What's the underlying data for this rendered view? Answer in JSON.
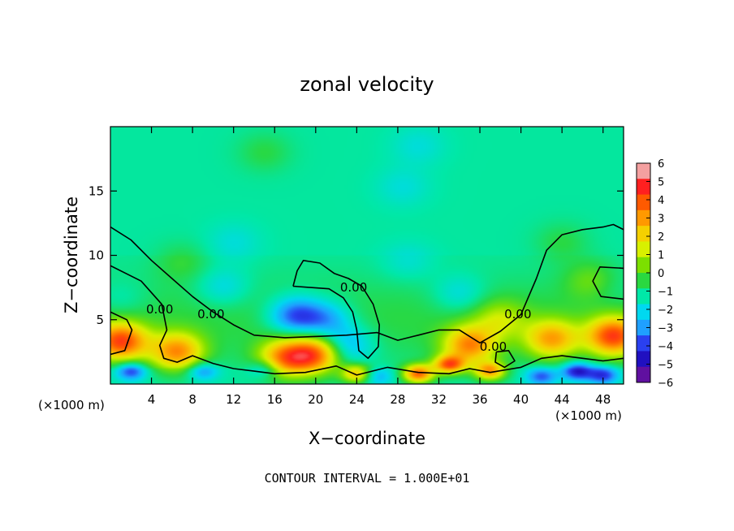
{
  "chart_data": {
    "type": "heatmap",
    "title": "zonal velocity",
    "xlabel": "X−coordinate",
    "ylabel": "Z−coordinate",
    "x_units": "(×1000 m)",
    "xlim": [
      0,
      50
    ],
    "ylim": [
      0,
      20
    ],
    "xticks": [
      4,
      8,
      12,
      16,
      20,
      24,
      28,
      32,
      36,
      40,
      44,
      48
    ],
    "yticks": [
      5,
      10,
      15
    ],
    "colorbar": {
      "min": -6,
      "max": 6,
      "ticks": [
        "6",
        "5",
        "4",
        "3",
        "2",
        "1",
        "0",
        "−1",
        "−2",
        "−3",
        "−4",
        "−5",
        "−6"
      ],
      "colors": [
        "#f4a0a0",
        "#ff2020",
        "#ff5a00",
        "#ff9900",
        "#f5d000",
        "#d8f000",
        "#7ce000",
        "#2ad840",
        "#00e8a8",
        "#00d8f0",
        "#1fa0ff",
        "#2a40f0",
        "#2010c0",
        "#6010a0"
      ]
    },
    "background_value": -1.3,
    "features": [
      {
        "x": 18,
        "z": 5.3,
        "value": -4.5
      },
      {
        "x": 21,
        "z": 5,
        "value": -3.5
      },
      {
        "x": 23,
        "z": 3,
        "value": -3.5
      },
      {
        "x": 12,
        "z": 11,
        "value": -2
      },
      {
        "x": 11,
        "z": 7.5,
        "value": -2.5
      },
      {
        "x": 1,
        "z": 6.5,
        "value": -2
      },
      {
        "x": 34,
        "z": 7,
        "value": -2.5
      },
      {
        "x": 29,
        "z": 9.5,
        "value": -2
      },
      {
        "x": 28.5,
        "z": 15.3,
        "value": -2
      },
      {
        "x": 30,
        "z": 18.5,
        "value": -2
      },
      {
        "x": 15,
        "z": 18,
        "value": -0.5
      },
      {
        "x": 7,
        "z": 9.5,
        "value": -0.5
      },
      {
        "x": 44,
        "z": 11,
        "value": -0.5
      },
      {
        "x": 47,
        "z": 8,
        "value": 0.2
      },
      {
        "x": 48.5,
        "z": 7.5,
        "value": -2
      },
      {
        "x": 1,
        "z": 3.3,
        "value": 4
      },
      {
        "x": 49,
        "z": 3.7,
        "value": 4
      },
      {
        "x": 20,
        "z": 2.3,
        "value": 3.5
      },
      {
        "x": 17,
        "z": 2,
        "value": 3
      },
      {
        "x": 35,
        "z": 3,
        "value": 3
      },
      {
        "x": 33,
        "z": 1.5,
        "value": 3.5
      },
      {
        "x": 43,
        "z": 3.5,
        "value": 2.5
      },
      {
        "x": 6.5,
        "z": 2.5,
        "value": 3
      },
      {
        "x": 30,
        "z": 0.8,
        "value": 4
      },
      {
        "x": 37,
        "z": 1,
        "value": 3
      },
      {
        "x": 24,
        "z": 0.8,
        "value": 2.5
      },
      {
        "x": 38,
        "z": 5,
        "value": 0.5
      },
      {
        "x": 2,
        "z": 1,
        "value": -4.5
      },
      {
        "x": 9,
        "z": 1,
        "value": -3.5
      },
      {
        "x": 15,
        "z": 1.2,
        "value": -3
      },
      {
        "x": 26,
        "z": 0.6,
        "value": -3
      },
      {
        "x": 42,
        "z": 0.6,
        "value": -4
      },
      {
        "x": 45.5,
        "z": 1,
        "value": -5
      },
      {
        "x": 48,
        "z": 0.7,
        "value": -4.5
      }
    ],
    "contour_labels": [
      {
        "text": "0.00",
        "x": 4.8,
        "z": 5.5
      },
      {
        "text": "0.00",
        "x": 9.8,
        "z": 5.1
      },
      {
        "text": "0.00",
        "x": 23.7,
        "z": 7.2
      },
      {
        "text": "0.00",
        "x": 37.3,
        "z": 2.6
      },
      {
        "text": "0.00",
        "x": 39.7,
        "z": 5.1
      }
    ],
    "contour_lines": [
      [
        [
          0,
          12.2
        ],
        [
          2,
          11.2
        ],
        [
          4,
          9.6
        ],
        [
          6,
          8.2
        ],
        [
          8,
          6.8
        ],
        [
          10,
          5.6
        ],
        [
          12,
          4.6
        ],
        [
          14,
          3.8
        ],
        [
          17,
          3.6
        ],
        [
          20,
          3.7
        ],
        [
          23,
          3.8
        ],
        [
          26,
          4.0
        ],
        [
          28,
          3.4
        ],
        [
          30,
          3.8
        ],
        [
          32,
          4.2
        ],
        [
          34,
          4.2
        ],
        [
          36,
          3.2
        ],
        [
          38,
          4.1
        ],
        [
          40,
          5.4
        ],
        [
          41.5,
          8.2
        ],
        [
          42.5,
          10.4
        ],
        [
          44,
          11.6
        ],
        [
          46,
          12.0
        ],
        [
          48,
          12.2
        ],
        [
          49,
          12.4
        ],
        [
          50,
          12.0
        ]
      ],
      [
        [
          0,
          9.2
        ],
        [
          3,
          8.0
        ],
        [
          5,
          6.2
        ],
        [
          5.5,
          4.2
        ],
        [
          4.8,
          3.0
        ],
        [
          5.2,
          2.0
        ],
        [
          6.5,
          1.7
        ],
        [
          8,
          2.2
        ],
        [
          10,
          1.6
        ],
        [
          12,
          1.2
        ],
        [
          14,
          1.0
        ],
        [
          16,
          0.8
        ],
        [
          19,
          0.9
        ],
        [
          22,
          1.4
        ],
        [
          24,
          0.7
        ],
        [
          27,
          1.3
        ],
        [
          30,
          0.9
        ],
        [
          33,
          0.8
        ],
        [
          35,
          1.2
        ],
        [
          37,
          0.9
        ],
        [
          40,
          1.3
        ],
        [
          42,
          2.0
        ],
        [
          44,
          2.2
        ],
        [
          46,
          2.0
        ],
        [
          48,
          1.8
        ],
        [
          50,
          2.0
        ]
      ],
      [
        [
          17.8,
          7.6
        ],
        [
          18.2,
          8.8
        ],
        [
          18.8,
          9.6
        ],
        [
          20.4,
          9.4
        ],
        [
          21.8,
          8.6
        ],
        [
          23.2,
          8.2
        ],
        [
          24.5,
          7.6
        ],
        [
          25.6,
          6.2
        ],
        [
          26.2,
          4.6
        ],
        [
          26.1,
          2.9
        ],
        [
          25.1,
          2.0
        ],
        [
          24.2,
          2.6
        ],
        [
          24.0,
          4.2
        ],
        [
          23.6,
          5.6
        ],
        [
          22.7,
          6.7
        ],
        [
          21.3,
          7.4
        ],
        [
          19.5,
          7.5
        ],
        [
          17.8,
          7.6
        ]
      ],
      [
        [
          0,
          5.6
        ],
        [
          1.6,
          5.0
        ],
        [
          2.1,
          4.2
        ],
        [
          1.4,
          2.6
        ],
        [
          0,
          2.3
        ]
      ],
      [
        [
          50,
          9.0
        ],
        [
          47.7,
          9.1
        ],
        [
          47.0,
          8.0
        ],
        [
          47.8,
          6.8
        ],
        [
          50,
          6.6
        ]
      ],
      [
        [
          37.6,
          2.5
        ],
        [
          38.8,
          2.6
        ],
        [
          39.4,
          1.8
        ],
        [
          38.4,
          1.3
        ],
        [
          37.5,
          1.7
        ],
        [
          37.6,
          2.5
        ]
      ]
    ]
  },
  "footer": "CONTOUR INTERVAL = 1.000E+01"
}
